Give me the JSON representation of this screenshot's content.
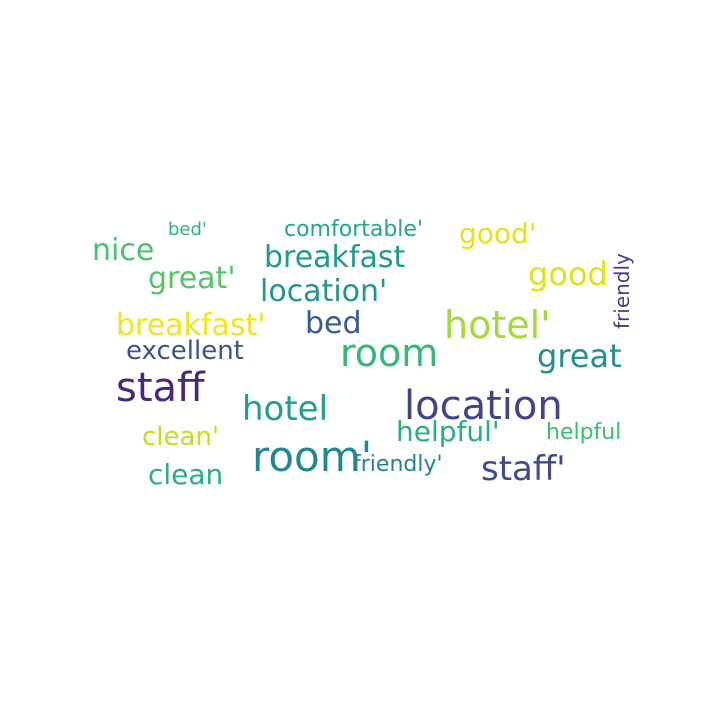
{
  "words": [
    {
      "text": "bed'",
      "color": "#2eb37c"
    },
    {
      "text": "comfortable'",
      "color": "#25a584"
    },
    {
      "text": "good'",
      "color": "#e2e418"
    },
    {
      "text": "nice",
      "color": "#4ac16d"
    },
    {
      "text": "breakfast",
      "color": "#1e9c89"
    },
    {
      "text": "great'",
      "color": "#52c569"
    },
    {
      "text": "good",
      "color": "#dde318"
    },
    {
      "text": "location'",
      "color": "#1f958b"
    },
    {
      "text": "friendly",
      "color": "#433e85"
    },
    {
      "text": "breakfast'",
      "color": "#f1e51d"
    },
    {
      "text": "bed",
      "color": "#375b8d"
    },
    {
      "text": "hotel'",
      "color": "#a2da37"
    },
    {
      "text": "excellent",
      "color": "#3b528b"
    },
    {
      "text": "room",
      "color": "#35b779"
    },
    {
      "text": "great",
      "color": "#21918c"
    },
    {
      "text": "staff",
      "color": "#482878"
    },
    {
      "text": "hotel",
      "color": "#1f9e89"
    },
    {
      "text": "location",
      "color": "#414487"
    },
    {
      "text": "clean'",
      "color": "#bddf26"
    },
    {
      "text": "helpful'",
      "color": "#29af7f"
    },
    {
      "text": "helpful",
      "color": "#3fbc73"
    },
    {
      "text": "room'",
      "color": "#23888e"
    },
    {
      "text": "friendly'",
      "color": "#26828e"
    },
    {
      "text": "staff'",
      "color": "#3e4a89"
    },
    {
      "text": "clean",
      "color": "#2ab07f"
    }
  ]
}
